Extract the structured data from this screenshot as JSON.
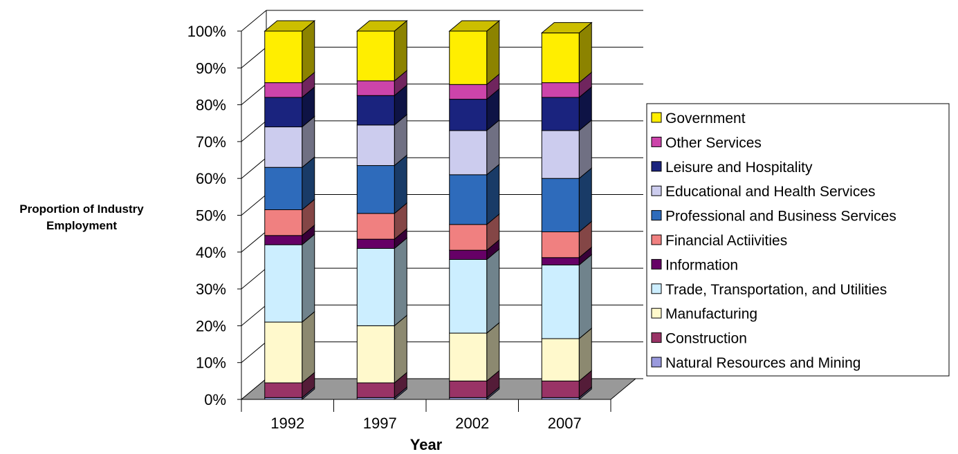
{
  "chart_data": {
    "type": "bar",
    "stacked": true,
    "percent": true,
    "three_d": true,
    "title": "",
    "xlabel": "Year",
    "ylabel": "Proportion of Industry Employment",
    "ylim": [
      0,
      100
    ],
    "y_ticks": [
      "0%",
      "10%",
      "20%",
      "30%",
      "40%",
      "50%",
      "60%",
      "70%",
      "80%",
      "90%",
      "100%"
    ],
    "categories": [
      "1992",
      "1997",
      "2002",
      "2007"
    ],
    "grid": true,
    "legend_position": "right",
    "legend_order": [
      "Government",
      "Other Services",
      "Leisure and Hospitality",
      "Educational and Health Services",
      "Professional and Business Services",
      "Financial Actiivities",
      "Information",
      "Trade, Transportation, and Utilities",
      "Manufacturing",
      "Construction",
      "Natural Resources and Mining"
    ],
    "series": [
      {
        "name": "Natural Resources and Mining",
        "color": "#9999dd",
        "values": [
          0.5,
          0.5,
          0.5,
          0.5
        ]
      },
      {
        "name": "Construction",
        "color": "#993366",
        "values": [
          4,
          4,
          4.5,
          4.5
        ]
      },
      {
        "name": "Manufacturing",
        "color": "#fff9cc",
        "values": [
          16.5,
          15.5,
          13,
          11.5
        ]
      },
      {
        "name": "Trade, Transportation, and Utilities",
        "color": "#cceeff",
        "values": [
          21,
          21,
          20,
          20
        ]
      },
      {
        "name": "Information",
        "color": "#660066",
        "values": [
          2.5,
          2.5,
          2.5,
          2
        ]
      },
      {
        "name": "Financial Actiivities",
        "color": "#f08080",
        "values": [
          7,
          7,
          7,
          7
        ]
      },
      {
        "name": "Professional and Business Services",
        "color": "#2e6bbb",
        "values": [
          11.5,
          13,
          13.5,
          14.5
        ]
      },
      {
        "name": "Educational and Health Services",
        "color": "#ccccee",
        "values": [
          11,
          11,
          12,
          13
        ]
      },
      {
        "name": "Leisure and Hospitality",
        "color": "#1a237e",
        "values": [
          8,
          8,
          8.5,
          9
        ]
      },
      {
        "name": "Other Services",
        "color": "#cc44aa",
        "values": [
          4,
          4,
          4,
          4
        ]
      },
      {
        "name": "Government",
        "color": "#ffee00",
        "values": [
          14,
          13.5,
          14.5,
          13.5
        ]
      }
    ]
  }
}
